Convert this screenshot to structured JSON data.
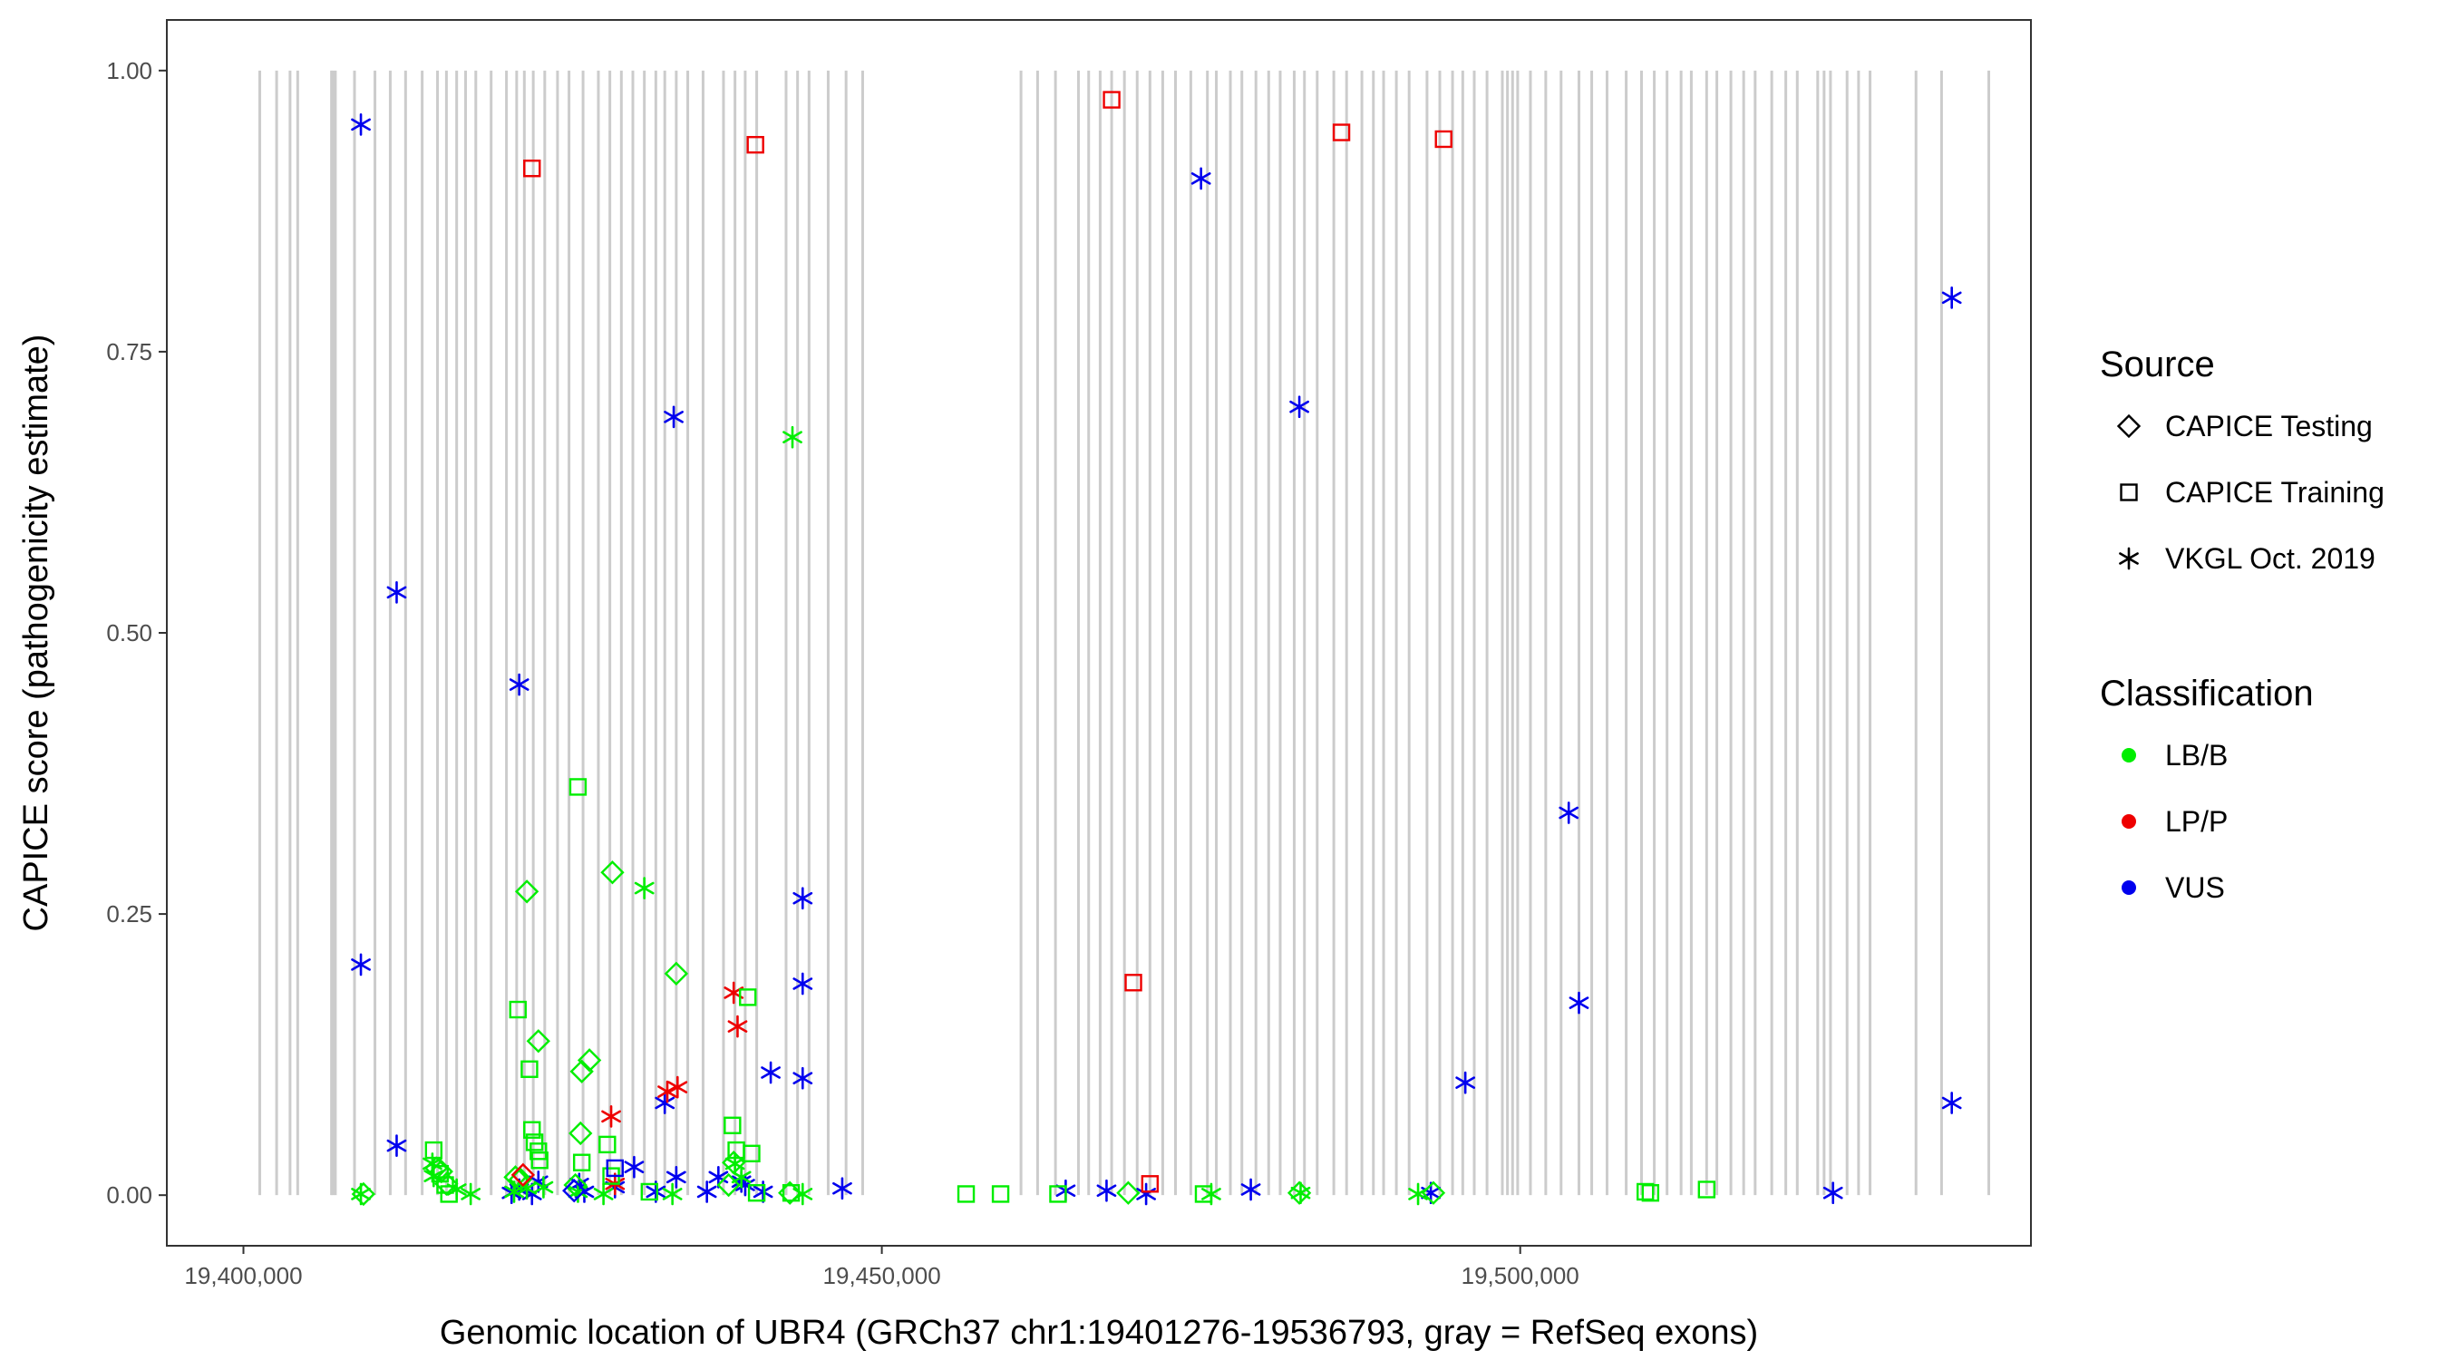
{
  "chart_data": {
    "type": "scatter",
    "title": "",
    "xlabel": "Genomic location of UBR4 (GRCh37 chr1:19401276-19536793, gray = RefSeq exons)",
    "ylabel": "CAPICE score (pathogenicity estimate)",
    "xlim": [
      19394000,
      19540000
    ],
    "ylim": [
      -0.045,
      1.045
    ],
    "x_ticks": [
      19400000,
      19450000,
      19500000
    ],
    "x_tick_labels": [
      "19,400,000",
      "19,450,000",
      "19,500,000"
    ],
    "y_ticks": [
      0,
      0.25,
      0.5,
      0.75,
      1
    ],
    "y_tick_labels": [
      "0.00",
      "0.25",
      "0.50",
      "0.75",
      "1.00"
    ],
    "grid": false,
    "exon_color": "#cccccc",
    "exons": [
      19401280,
      19402600,
      19403650,
      19404250,
      19406900,
      19407000,
      19407200,
      19408700,
      19410300,
      19411500,
      19412700,
      19414000,
      19415200,
      19415900,
      19416700,
      19417400,
      19418200,
      19419400,
      19420600,
      19421400,
      19422000,
      19422700,
      19423600,
      19424600,
      19425500,
      19426600,
      19427800,
      19428700,
      19429600,
      19430500,
      19431400,
      19432300,
      19433000,
      19433900,
      19434800,
      19436000,
      19437600,
      19438500,
      19439300,
      19440200,
      19442500,
      19443400,
      19444300,
      19445800,
      19447200,
      19448500,
      19460900,
      19462200,
      19463600,
      19465400,
      19466200,
      19467100,
      19468000,
      19469000,
      19470000,
      19471000,
      19472000,
      19473000,
      19474200,
      19475500,
      19476200,
      19477300,
      19478200,
      19479300,
      19480300,
      19481200,
      19482300,
      19483100,
      19484100,
      19485400,
      19486400,
      19487600,
      19488500,
      19489300,
      19490300,
      19491300,
      19492700,
      19493700,
      19494700,
      19495500,
      19496400,
      19497400,
      19498600,
      19499000,
      19499400,
      19499800,
      19500800,
      19502000,
      19503200,
      19504600,
      19505600,
      19506800,
      19508300,
      19509500,
      19510500,
      19511500,
      19512600,
      19513400,
      19514600,
      19515400,
      19516500,
      19517500,
      19518400,
      19519700,
      19520800,
      19521700,
      19523300,
      19523800,
      19524300,
      19525600,
      19526500,
      19527400,
      19531000,
      19533000,
      19536700
    ],
    "legend": {
      "source_title": "Source",
      "source_items": [
        {
          "label": "CAPICE Testing",
          "shape": "diamond"
        },
        {
          "label": "CAPICE Training",
          "shape": "square"
        },
        {
          "label": "VKGL Oct. 2019",
          "shape": "asterisk"
        }
      ],
      "class_title": "Classification",
      "class_items": [
        {
          "label": "LB/B",
          "color": "#00ee00"
        },
        {
          "label": "LP/P",
          "color": "#ee0000"
        },
        {
          "label": "VUS",
          "color": "#0000ee"
        }
      ],
      "placement": "right"
    },
    "series": [
      {
        "source": "VKGL Oct. 2019",
        "classification": "VUS",
        "x": [
          19409200,
          19412000,
          19412000,
          19421600,
          19433700,
          19441300,
          19443800,
          19443800,
          19443800,
          19475000,
          19482700,
          19503800,
          19504600,
          19495700,
          19533800,
          19533800,
          19409200,
          19421000,
          19421600,
          19422600,
          19423100,
          19426300,
          19426700,
          19429100,
          19430600,
          19432300,
          19433000,
          19433900,
          19436300,
          19437200,
          19439000,
          19439300,
          19440700,
          19446900,
          19464400,
          19467600,
          19470700,
          19478900,
          19493000,
          19524500
        ],
        "y": [
          0.952,
          0.536,
          0.044,
          0.454,
          0.692,
          0.109,
          0.264,
          0.188,
          0.104,
          0.904,
          0.701,
          0.34,
          0.171,
          0.1,
          0.798,
          0.082,
          0.205,
          0.002,
          0.005,
          0.001,
          0.012,
          0.01,
          0.003,
          0.007,
          0.025,
          0.003,
          0.082,
          0.016,
          0.003,
          0.016,
          0.012,
          0.009,
          0.003,
          0.006,
          0.004,
          0.004,
          0.001,
          0.005,
          0.002,
          0.002
        ]
      },
      {
        "source": "VKGL Oct. 2019",
        "classification": "LB/B",
        "x": [
          19409200,
          19414800,
          19414900,
          19416700,
          19417800,
          19421200,
          19422200,
          19423500,
          19426200,
          19428200,
          19431400,
          19433600,
          19438500,
          19439000,
          19443000,
          19443800,
          19475800,
          19482800,
          19492000
        ],
        "y": [
          0.001,
          0.028,
          0.017,
          0.005,
          0.001,
          0.003,
          0.006,
          0.007,
          0.003,
          0.001,
          0.273,
          0.001,
          0.028,
          0.016,
          0.674,
          0.001,
          0.001,
          0.002,
          0.001
        ]
      },
      {
        "source": "VKGL Oct. 2019",
        "classification": "LP/P",
        "x": [
          19428800,
          19433200,
          19434000,
          19438400,
          19438700,
          19429100
        ],
        "y": [
          0.07,
          0.092,
          0.096,
          0.18,
          0.15,
          0.01
        ]
      },
      {
        "source": "CAPICE Testing",
        "classification": "LB/B",
        "x": [
          19409400,
          19415100,
          19415500,
          19421300,
          19422200,
          19423100,
          19426400,
          19426500,
          19427100,
          19428900,
          19433900,
          19438400,
          19442800,
          19469300,
          19482700,
          19493200,
          19415900,
          19421700,
          19426000,
          19438000
        ],
        "y": [
          0.001,
          0.024,
          0.021,
          0.016,
          0.27,
          0.137,
          0.055,
          0.11,
          0.12,
          0.287,
          0.197,
          0.029,
          0.002,
          0.002,
          0.002,
          0.002,
          0.01,
          0.014,
          0.009,
          0.009
        ]
      },
      {
        "source": "CAPICE Testing",
        "classification": "LP/P",
        "x": [
          19421900
        ],
        "y": [
          0.018
        ]
      },
      {
        "source": "CAPICE Testing",
        "classification": "VUS",
        "x": [
          19425900
        ],
        "y": [
          0.004
        ]
      },
      {
        "source": "CAPICE Training",
        "classification": "LB/B",
        "x": [
          19414900,
          19415400,
          19415800,
          19416100,
          19421500,
          19422400,
          19422600,
          19422800,
          19423100,
          19423200,
          19426200,
          19426500,
          19428500,
          19428800,
          19431800,
          19438300,
          19438600,
          19439500,
          19439800,
          19440200,
          19442900,
          19456600,
          19459300,
          19463800,
          19475200,
          19509800,
          19510200,
          19514600
        ],
        "y": [
          0.04,
          0.019,
          0.009,
          0.001,
          0.165,
          0.112,
          0.058,
          0.047,
          0.039,
          0.031,
          0.363,
          0.029,
          0.045,
          0.017,
          0.003,
          0.062,
          0.04,
          0.176,
          0.037,
          0.002,
          0.002,
          0.001,
          0.001,
          0.001,
          0.001,
          0.003,
          0.002,
          0.005
        ]
      },
      {
        "source": "CAPICE Training",
        "classification": "LP/P",
        "x": [
          19422600,
          19440100,
          19468000,
          19469700,
          19471000,
          19486000,
          19494000
        ],
        "y": [
          0.913,
          0.934,
          0.974,
          0.189,
          0.01,
          0.945,
          0.939
        ]
      },
      {
        "source": "CAPICE Training",
        "classification": "VUS",
        "x": [
          19429100
        ],
        "y": [
          0.024
        ]
      }
    ]
  }
}
